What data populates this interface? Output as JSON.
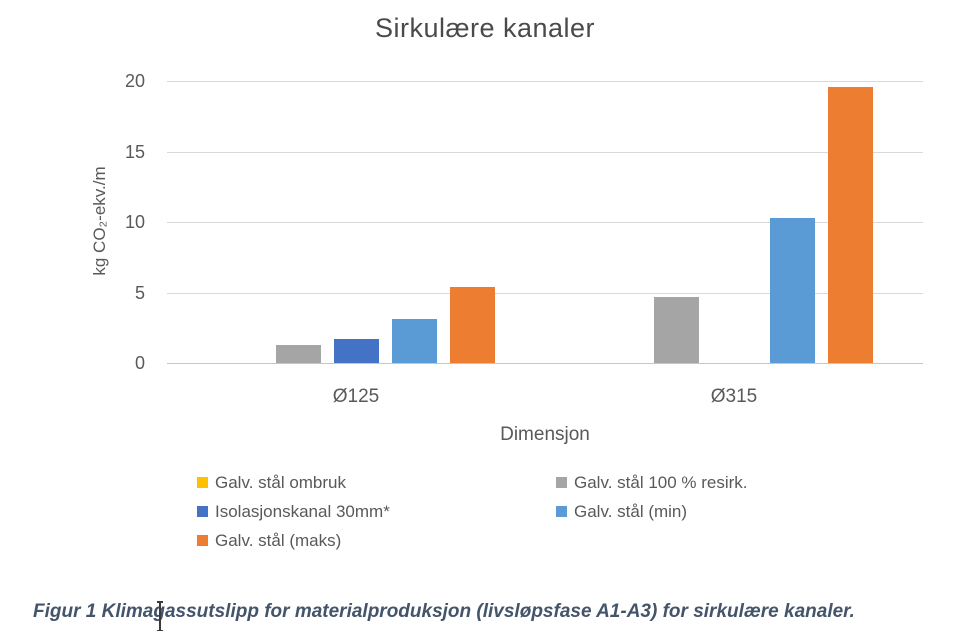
{
  "chart_data": {
    "type": "bar",
    "title": "Sirkulære kanaler",
    "xlabel": "Dimensjon",
    "ylabel": "kg CO₂-ekv./m",
    "ylim": [
      0,
      20
    ],
    "yticks": [
      0,
      5,
      10,
      15,
      20
    ],
    "grid": true,
    "legend_position": "bottom",
    "categories": [
      "Ø125",
      "Ø315"
    ],
    "series": [
      {
        "name": "Galv. stål ombruk",
        "color": "#FFC000",
        "values": [
          0,
          0
        ]
      },
      {
        "name": "Galv. stål 100 % resirk.",
        "color": "#A5A5A5",
        "values": [
          1.3,
          4.7
        ]
      },
      {
        "name": "Isolasjonskanal 30mm*",
        "color": "#4472C4",
        "values": [
          1.7,
          0
        ]
      },
      {
        "name": "Galv. stål (min)",
        "color": "#5B9BD5",
        "values": [
          3.1,
          10.3
        ]
      },
      {
        "name": "Galv. stål (maks)",
        "color": "#ED7D31",
        "values": [
          5.4,
          19.6
        ]
      }
    ]
  },
  "caption": {
    "text": "Figur 1 Klimagassutslipp for materialproduksjon (livsløpsfase A1-A3) for sirkulære kanaler."
  },
  "colors": {
    "gridline": "#d9d9d9",
    "axis_line": "#c6c6c6",
    "axis_text": "#595959",
    "title_text": "#4a4a4a",
    "caption_text": "#44546a"
  }
}
